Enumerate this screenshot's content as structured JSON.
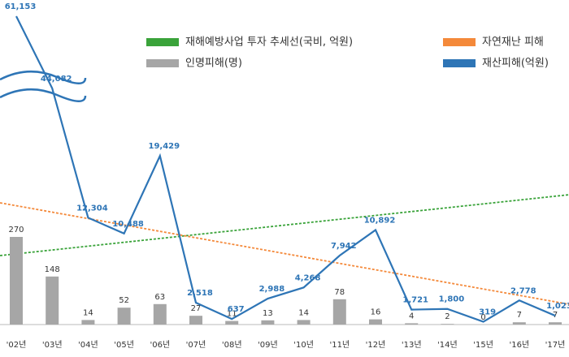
{
  "chart_data": {
    "type": "bar_line",
    "categories": [
      "'02년",
      "'03년",
      "'04년",
      "'05년",
      "'06년",
      "'07년",
      "'08년",
      "'09년",
      "'10년",
      "'11년",
      "'12년",
      "'13년",
      "'14년",
      "'15년",
      "'16년",
      "'17년"
    ],
    "series": [
      {
        "name": "인명피해(명)",
        "color": "#a6a6a6",
        "kind": "bar",
        "values": [
          270,
          148,
          14,
          52,
          63,
          27,
          11,
          13,
          14,
          78,
          16,
          4,
          2,
          0,
          7,
          7
        ]
      },
      {
        "name": "재산피해(억원)",
        "color": "#2e75b6",
        "kind": "line",
        "values": [
          61153,
          44082,
          12304,
          10488,
          19429,
          2518,
          637,
          2988,
          4268,
          7942,
          10892,
          1721,
          1800,
          319,
          2778,
          1023
        ],
        "value_labels": [
          "61,153",
          "44,082",
          "12,304",
          "10,488",
          "19,429",
          "2,518",
          "637",
          "2,988",
          "4,268",
          "7,942",
          "10,892",
          "1,721",
          "1,800",
          "319",
          "2,778",
          "1,023"
        ]
      }
    ],
    "trend_lines": [
      {
        "name": "재해예방사업 투자 추세선(국비, 억원)",
        "color": "#3aa33a"
      },
      {
        "name": "자연재난 피해",
        "color": "#f4893a"
      }
    ]
  }
}
